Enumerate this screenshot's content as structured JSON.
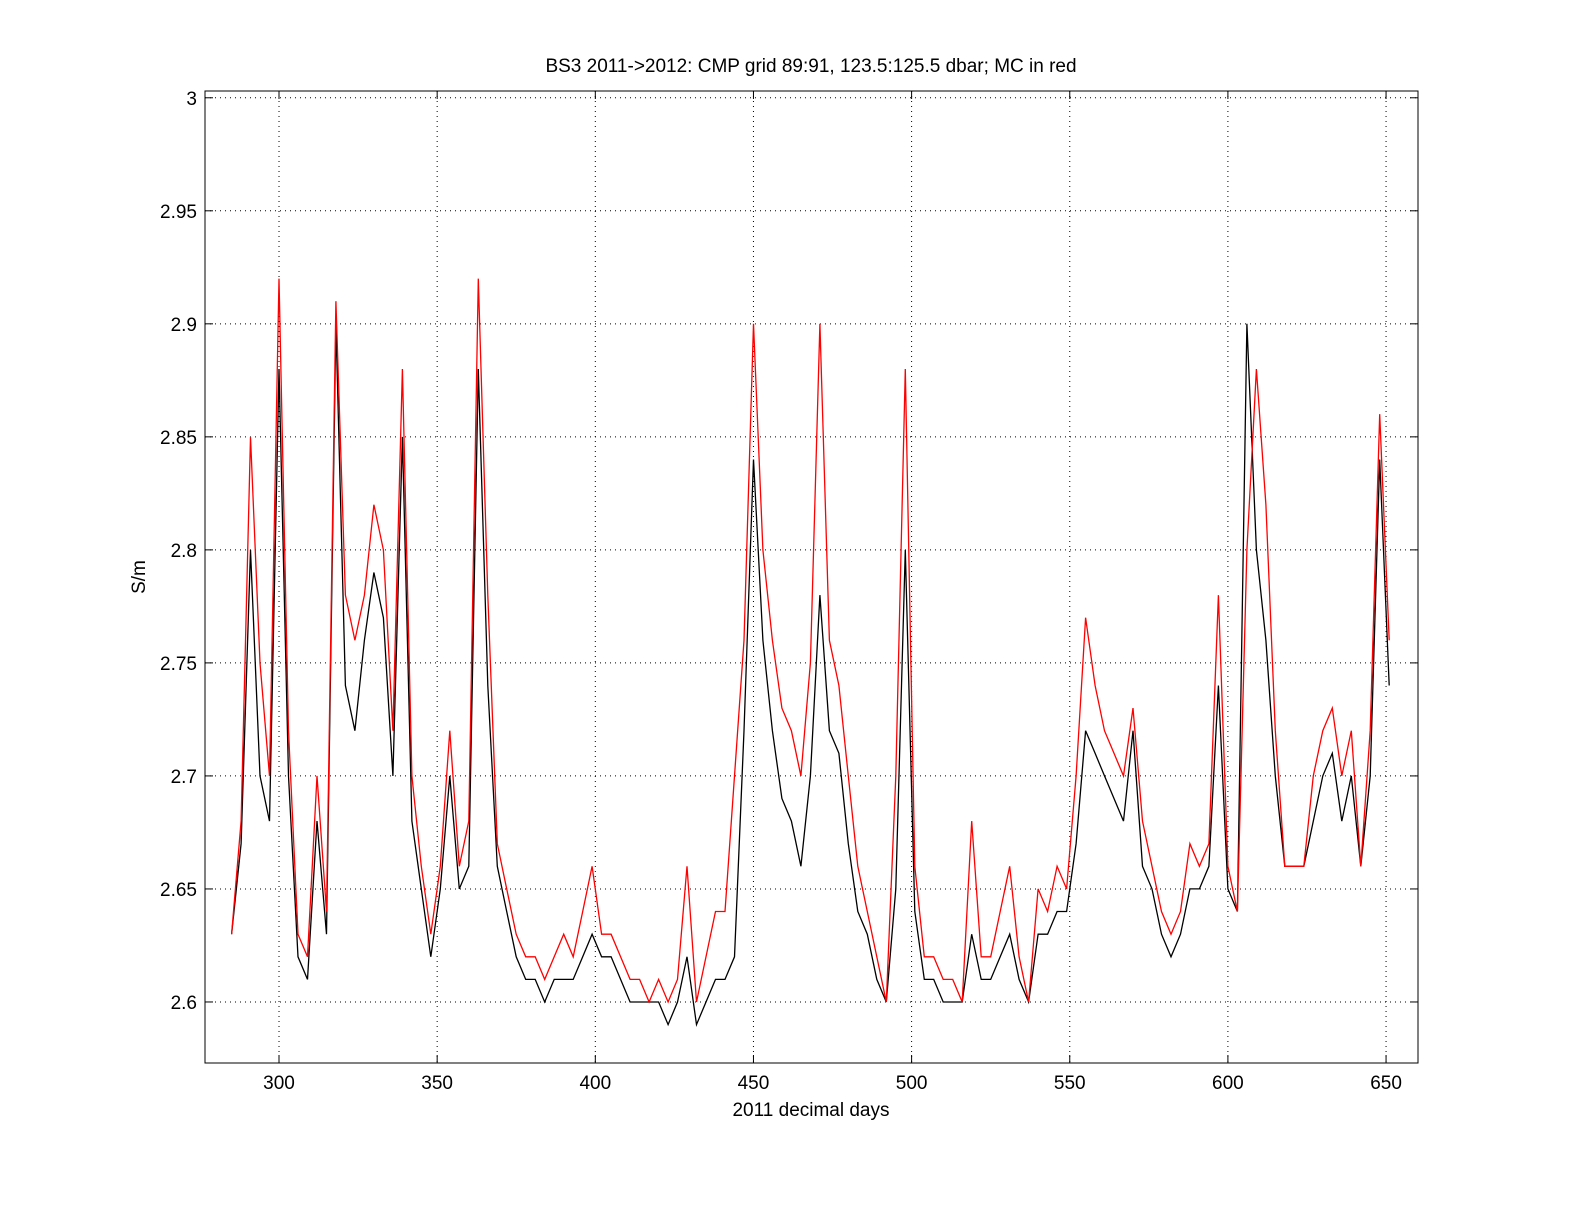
{
  "chart_data": {
    "type": "line",
    "title": "BS3 2011->2012: CMP grid 89:91, 123.5:125.5 dbar; MC in red",
    "xlabel": "2011 decimal days",
    "ylabel": "S/m",
    "xlim": [
      276.6,
      660.1
    ],
    "ylim": [
      2.573,
      3.003
    ],
    "xticks": [
      300,
      350,
      400,
      450,
      500,
      550,
      600,
      650
    ],
    "yticks": [
      2.6,
      2.65,
      2.7,
      2.75,
      2.8,
      2.85,
      2.9,
      2.95,
      3
    ],
    "grid": true,
    "x": [
      285,
      288,
      291,
      294,
      297,
      300,
      303,
      306,
      309,
      312,
      315,
      318,
      321,
      324,
      327,
      330,
      333,
      336,
      339,
      342,
      345,
      348,
      351,
      354,
      357,
      360,
      363,
      366,
      369,
      372,
      375,
      378,
      381,
      384,
      387,
      390,
      393,
      396,
      399,
      402,
      405,
      408,
      411,
      414,
      417,
      420,
      423,
      426,
      429,
      432,
      435,
      438,
      441,
      444,
      447,
      450,
      453,
      456,
      459,
      462,
      465,
      468,
      471,
      474,
      477,
      480,
      483,
      486,
      489,
      492,
      495,
      498,
      501,
      504,
      507,
      510,
      513,
      516,
      519,
      522,
      525,
      528,
      531,
      534,
      537,
      540,
      543,
      546,
      549,
      552,
      555,
      558,
      561,
      564,
      567,
      570,
      573,
      576,
      579,
      582,
      585,
      588,
      591,
      594,
      597,
      600,
      603,
      606,
      609,
      612,
      615,
      618,
      621,
      624,
      627,
      630,
      633,
      636,
      639,
      642,
      645,
      648,
      651
    ],
    "series": [
      {
        "color": "#000000",
        "values": [
          2.63,
          2.67,
          2.8,
          2.7,
          2.68,
          2.88,
          2.7,
          2.62,
          2.61,
          2.68,
          2.63,
          2.9,
          2.74,
          2.72,
          2.76,
          2.79,
          2.77,
          2.7,
          2.85,
          2.68,
          2.65,
          2.62,
          2.65,
          2.7,
          2.65,
          2.66,
          2.88,
          2.74,
          2.66,
          2.64,
          2.62,
          2.61,
          2.61,
          2.6,
          2.61,
          2.61,
          2.61,
          2.62,
          2.63,
          2.62,
          2.62,
          2.61,
          2.6,
          2.6,
          2.6,
          2.6,
          2.59,
          2.6,
          2.62,
          2.59,
          2.6,
          2.61,
          2.61,
          2.62,
          2.72,
          2.84,
          2.76,
          2.72,
          2.69,
          2.68,
          2.66,
          2.7,
          2.78,
          2.72,
          2.71,
          2.67,
          2.64,
          2.63,
          2.61,
          2.6,
          2.65,
          2.8,
          2.64,
          2.61,
          2.61,
          2.6,
          2.6,
          2.6,
          2.63,
          2.61,
          2.61,
          2.62,
          2.63,
          2.61,
          2.6,
          2.63,
          2.63,
          2.64,
          2.64,
          2.67,
          2.72,
          2.71,
          2.7,
          2.69,
          2.68,
          2.72,
          2.66,
          2.65,
          2.63,
          2.62,
          2.63,
          2.65,
          2.65,
          2.66,
          2.74,
          2.65,
          2.64,
          2.9,
          2.8,
          2.76,
          2.7,
          2.66,
          2.66,
          2.66,
          2.68,
          2.7,
          2.71,
          2.68,
          2.7,
          2.66,
          2.7,
          2.84,
          2.74
        ]
      },
      {
        "color": "#ff0000",
        "values": [
          2.63,
          2.68,
          2.85,
          2.75,
          2.7,
          2.92,
          2.72,
          2.63,
          2.62,
          2.7,
          2.64,
          2.91,
          2.78,
          2.76,
          2.78,
          2.82,
          2.8,
          2.72,
          2.88,
          2.7,
          2.66,
          2.63,
          2.66,
          2.72,
          2.66,
          2.68,
          2.92,
          2.78,
          2.67,
          2.65,
          2.63,
          2.62,
          2.62,
          2.61,
          2.62,
          2.63,
          2.62,
          2.64,
          2.66,
          2.63,
          2.63,
          2.62,
          2.61,
          2.61,
          2.6,
          2.61,
          2.6,
          2.61,
          2.66,
          2.6,
          2.62,
          2.64,
          2.64,
          2.7,
          2.76,
          2.9,
          2.8,
          2.76,
          2.73,
          2.72,
          2.7,
          2.75,
          2.9,
          2.76,
          2.74,
          2.7,
          2.66,
          2.64,
          2.62,
          2.6,
          2.7,
          2.88,
          2.66,
          2.62,
          2.62,
          2.61,
          2.61,
          2.6,
          2.68,
          2.62,
          2.62,
          2.64,
          2.66,
          2.62,
          2.6,
          2.65,
          2.64,
          2.66,
          2.65,
          2.7,
          2.77,
          2.74,
          2.72,
          2.71,
          2.7,
          2.73,
          2.68,
          2.66,
          2.64,
          2.63,
          2.64,
          2.67,
          2.66,
          2.67,
          2.78,
          2.66,
          2.64,
          2.8,
          2.88,
          2.82,
          2.72,
          2.66,
          2.66,
          2.66,
          2.7,
          2.72,
          2.73,
          2.7,
          2.72,
          2.66,
          2.72,
          2.86,
          2.76
        ]
      }
    ]
  }
}
